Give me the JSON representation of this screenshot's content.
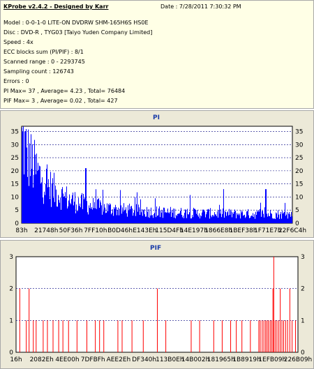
{
  "info": {
    "title": "KProbe v2.4.2 - Designed by Karr",
    "date": "Date : 7/28/2011 7:30:32 PM",
    "lines": [
      "Model : 0-0-1-0 LITE-ON DVDRW SHM-165H6S HS0E",
      "Disc : DVD-R , TYG03 [Taiyo Yuden Company Limited]",
      "Speed : 4x",
      "ECC blocks sum (PI/PIF) : 8/1",
      "Scanned range : 0 - 2293745",
      "Sampling count : 126743",
      "Errors : 0",
      "PI Max= 37 , Average= 4.23 , Total= 76484",
      "PIF Max= 3 , Average= 0.02 , Total= 427"
    ]
  },
  "chart_data": [
    {
      "type": "bar",
      "title": "PI",
      "bar_color": "#0000ff",
      "ylim": [
        0,
        37
      ],
      "yticks": [
        0,
        5,
        10,
        15,
        20,
        25,
        30,
        35
      ],
      "xticks": [
        "83h",
        "21748h",
        "50F36h",
        "7FF10h",
        "B0D46h",
        "E143Eh",
        "115D4Fh",
        "14E197h",
        "1866E8h",
        "1BEF38h",
        "1F71E7h",
        "22F6C4h"
      ],
      "grid": true,
      "max": 37,
      "average": 4.23
    },
    {
      "type": "bar",
      "title": "PIF",
      "bar_color": "#ff0000",
      "ylim": [
        0,
        3
      ],
      "yticks": [
        0,
        1,
        2,
        3
      ],
      "xticks": [
        "16h",
        "2082Eh",
        "4EE00h",
        "7DFBFh",
        "AEE2Eh",
        "DF340h",
        "113B0Eh",
        "14B002h",
        "181965h",
        "1B8919h",
        "1EFB09h",
        "226B09h"
      ],
      "grid": true,
      "max": 3,
      "average": 0.02
    }
  ]
}
